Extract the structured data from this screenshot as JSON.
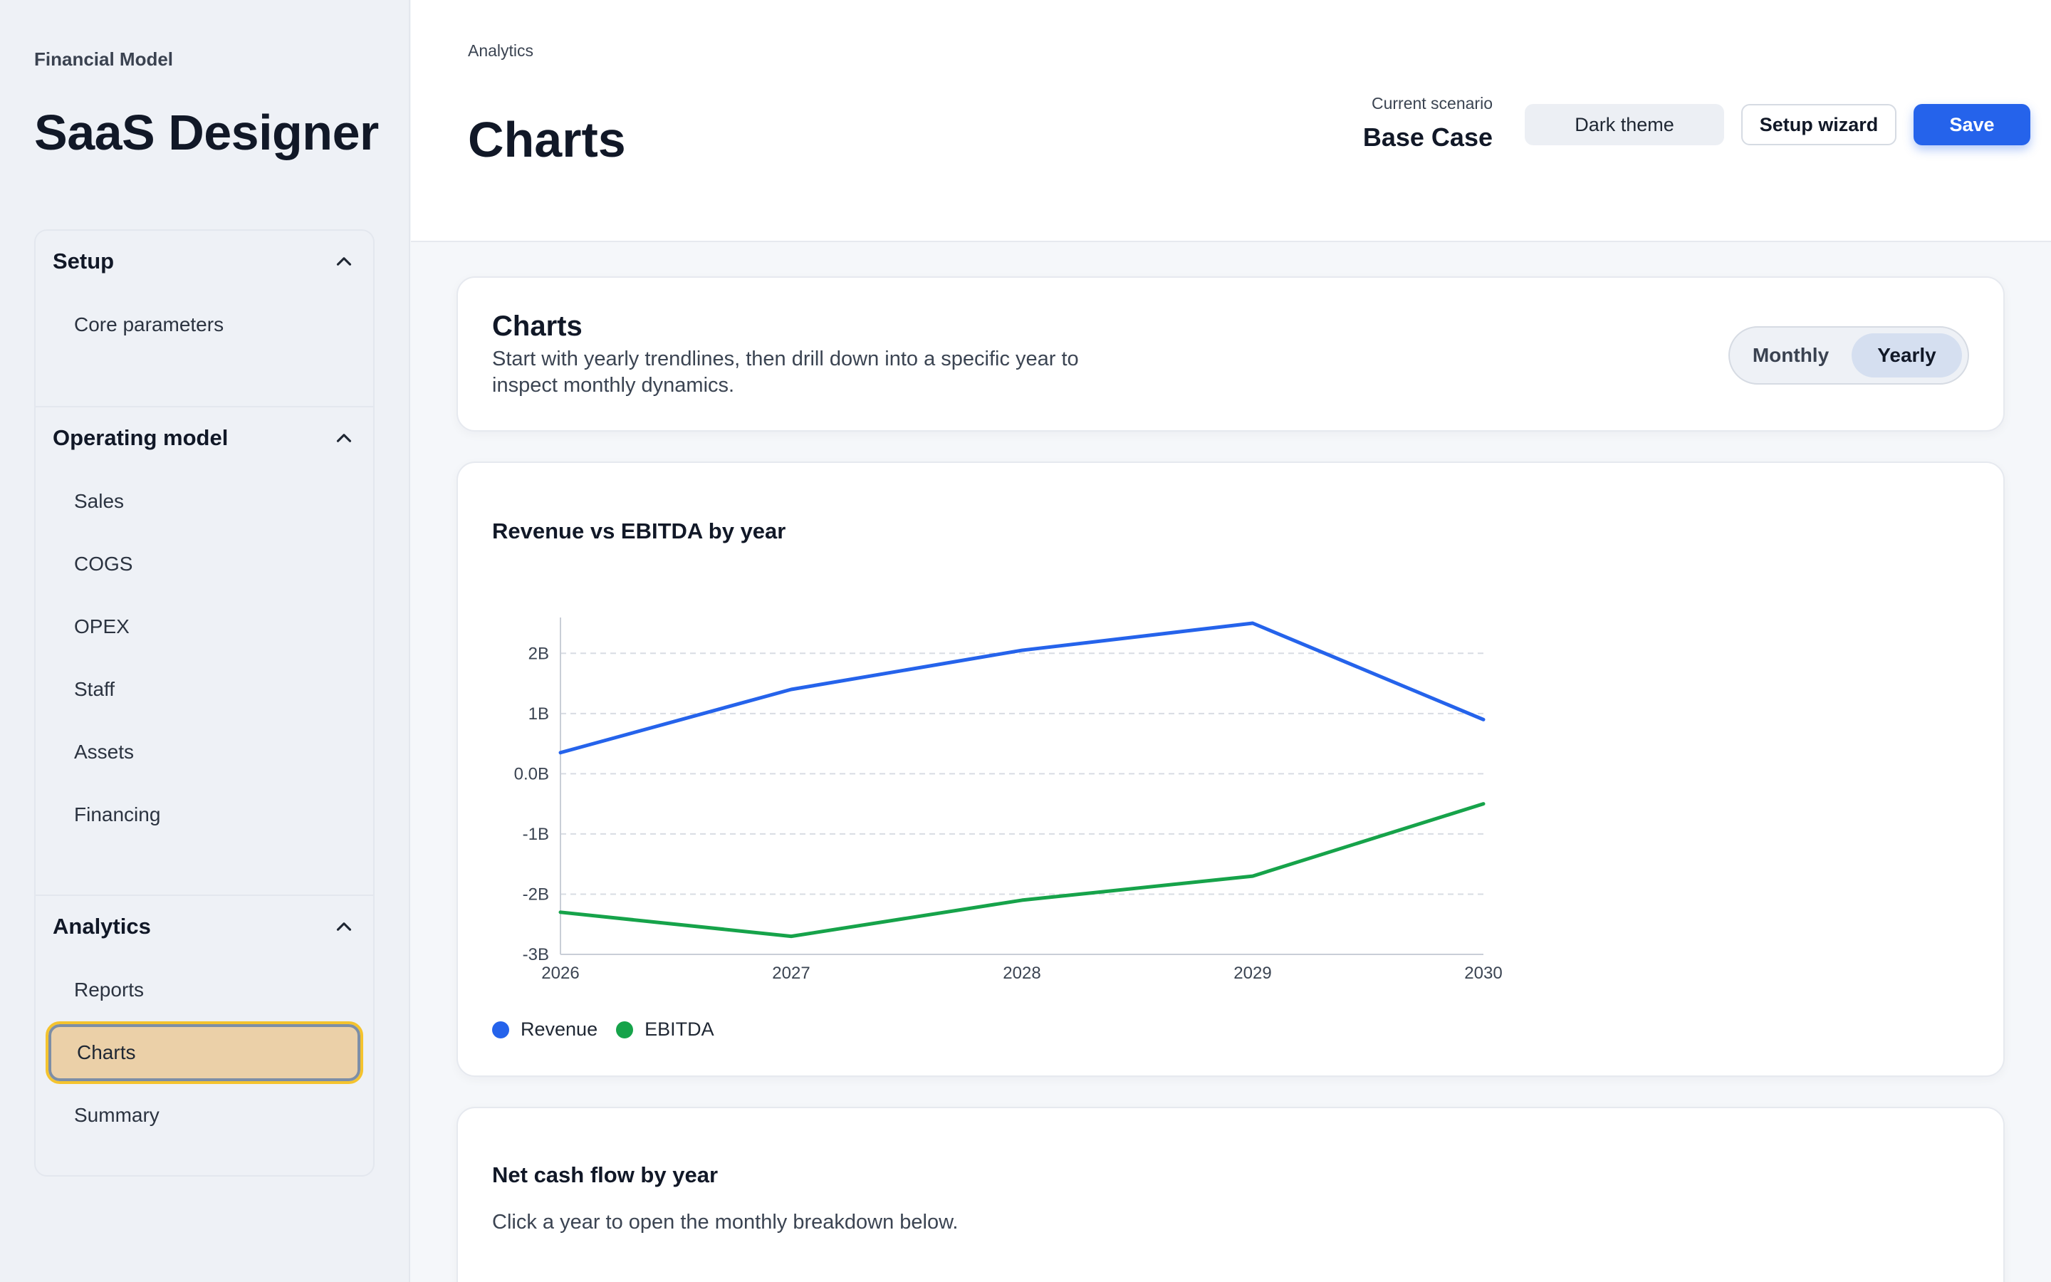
{
  "sidebar": {
    "kicker": "Financial Model",
    "title": "SaaS Designer",
    "sections": [
      {
        "label": "Setup",
        "items": [
          "Core parameters"
        ]
      },
      {
        "label": "Operating model",
        "items": [
          "Sales",
          "COGS",
          "OPEX",
          "Staff",
          "Assets",
          "Financing"
        ]
      },
      {
        "label": "Analytics",
        "items": [
          "Reports",
          "Charts",
          "Summary"
        ]
      }
    ],
    "active_item": "Charts"
  },
  "header": {
    "breadcrumb": "Analytics",
    "title": "Charts",
    "scenario_label": "Current scenario",
    "scenario_value": "Base Case",
    "dark_theme_label": "Dark theme",
    "setup_wizard_label": "Setup wizard",
    "save_label": "Save"
  },
  "intro_card": {
    "title": "Charts",
    "description": "Start with yearly trendlines, then drill down into a specific year to inspect monthly dynamics.",
    "toggle": {
      "options": [
        "Monthly",
        "Yearly"
      ],
      "selected": "Yearly"
    }
  },
  "chart_card": {
    "title": "Revenue vs EBITDA by year"
  },
  "chart_data": {
    "type": "line",
    "title": "Revenue vs EBITDA by year",
    "x": [
      "2026",
      "2027",
      "2028",
      "2029",
      "2030"
    ],
    "series": [
      {
        "name": "Revenue",
        "color": "#2563eb",
        "values": [
          0.35,
          1.4,
          2.05,
          2.5,
          0.9
        ]
      },
      {
        "name": "EBITDA",
        "color": "#16a34a",
        "values": [
          -2.3,
          -2.7,
          -2.1,
          -1.7,
          -0.5
        ]
      }
    ],
    "y_ticks": [
      "2B",
      "1B",
      "0.0B",
      "-1B",
      "-2B",
      "-3B"
    ],
    "ylim": [
      -3,
      2.5
    ],
    "y_unit": "B",
    "grid": "horizontal dashed",
    "legend": "bottom-left"
  },
  "cashflow_card": {
    "title": "Net cash flow by year",
    "description": "Click a year to open the monthly breakdown below."
  },
  "colors": {
    "accent": "#2563eb",
    "revenue": "#2563eb",
    "ebitda": "#16a34a",
    "active_nav_bg": "#ebd0a8",
    "active_nav_outline": "#f4c32e"
  }
}
